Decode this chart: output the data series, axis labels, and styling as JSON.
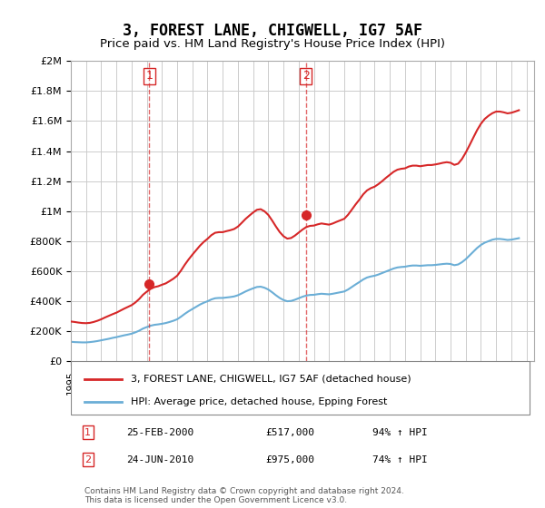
{
  "title": "3, FOREST LANE, CHIGWELL, IG7 5AF",
  "subtitle": "Price paid vs. HM Land Registry's House Price Index (HPI)",
  "ylabel": "",
  "xlabel": "",
  "ylim": [
    0,
    2000000
  ],
  "yticks": [
    0,
    200000,
    400000,
    600000,
    800000,
    1000000,
    1200000,
    1400000,
    1600000,
    1800000,
    2000000
  ],
  "ytick_labels": [
    "£0",
    "£200K",
    "£400K",
    "£600K",
    "£800K",
    "£1M",
    "£1.2M",
    "£1.4M",
    "£1.6M",
    "£1.8M",
    "£2M"
  ],
  "xlim_start": 1995.0,
  "xlim_end": 2025.5,
  "hpi_color": "#6baed6",
  "property_color": "#d62728",
  "sale1_x": 2000.15,
  "sale1_y": 517000,
  "sale2_x": 2010.48,
  "sale2_y": 975000,
  "sale1_label": "25-FEB-2000",
  "sale1_price": "£517,000",
  "sale1_hpi": "94% ↑ HPI",
  "sale2_label": "24-JUN-2010",
  "sale2_price": "£975,000",
  "sale2_hpi": "74% ↑ HPI",
  "legend_line1": "3, FOREST LANE, CHIGWELL, IG7 5AF (detached house)",
  "legend_line2": "HPI: Average price, detached house, Epping Forest",
  "footnote": "Contains HM Land Registry data © Crown copyright and database right 2024.\nThis data is licensed under the Open Government Licence v3.0.",
  "background_color": "#ffffff",
  "grid_color": "#cccccc",
  "hpi_data_x": [
    1995.0,
    1995.25,
    1995.5,
    1995.75,
    1996.0,
    1996.25,
    1996.5,
    1996.75,
    1997.0,
    1997.25,
    1997.5,
    1997.75,
    1998.0,
    1998.25,
    1998.5,
    1998.75,
    1999.0,
    1999.25,
    1999.5,
    1999.75,
    2000.0,
    2000.25,
    2000.5,
    2000.75,
    2001.0,
    2001.25,
    2001.5,
    2001.75,
    2002.0,
    2002.25,
    2002.5,
    2002.75,
    2003.0,
    2003.25,
    2003.5,
    2003.75,
    2004.0,
    2004.25,
    2004.5,
    2004.75,
    2005.0,
    2005.25,
    2005.5,
    2005.75,
    2006.0,
    2006.25,
    2006.5,
    2006.75,
    2007.0,
    2007.25,
    2007.5,
    2007.75,
    2008.0,
    2008.25,
    2008.5,
    2008.75,
    2009.0,
    2009.25,
    2009.5,
    2009.75,
    2010.0,
    2010.25,
    2010.5,
    2010.75,
    2011.0,
    2011.25,
    2011.5,
    2011.75,
    2012.0,
    2012.25,
    2012.5,
    2012.75,
    2013.0,
    2013.25,
    2013.5,
    2013.75,
    2014.0,
    2014.25,
    2014.5,
    2014.75,
    2015.0,
    2015.25,
    2015.5,
    2015.75,
    2016.0,
    2016.25,
    2016.5,
    2016.75,
    2017.0,
    2017.25,
    2017.5,
    2017.75,
    2018.0,
    2018.25,
    2018.5,
    2018.75,
    2019.0,
    2019.25,
    2019.5,
    2019.75,
    2020.0,
    2020.25,
    2020.5,
    2020.75,
    2021.0,
    2021.25,
    2021.5,
    2021.75,
    2022.0,
    2022.25,
    2022.5,
    2022.75,
    2023.0,
    2023.25,
    2023.5,
    2023.75,
    2024.0,
    2024.25,
    2024.5
  ],
  "hpi_data_y": [
    130000,
    128000,
    127000,
    126000,
    126000,
    128000,
    131000,
    135000,
    140000,
    145000,
    150000,
    156000,
    161000,
    167000,
    173000,
    178000,
    184000,
    193000,
    204000,
    218000,
    228000,
    237000,
    243000,
    246000,
    250000,
    255000,
    262000,
    270000,
    280000,
    297000,
    316000,
    333000,
    348000,
    363000,
    378000,
    390000,
    400000,
    412000,
    420000,
    422000,
    422000,
    425000,
    428000,
    432000,
    440000,
    452000,
    465000,
    476000,
    486000,
    495000,
    497000,
    490000,
    478000,
    460000,
    440000,
    422000,
    408000,
    400000,
    402000,
    410000,
    420000,
    430000,
    438000,
    442000,
    443000,
    447000,
    450000,
    448000,
    446000,
    450000,
    455000,
    460000,
    465000,
    478000,
    495000,
    512000,
    528000,
    545000,
    558000,
    565000,
    570000,
    578000,
    588000,
    598000,
    608000,
    618000,
    625000,
    628000,
    630000,
    635000,
    638000,
    638000,
    636000,
    638000,
    640000,
    640000,
    642000,
    645000,
    648000,
    650000,
    648000,
    640000,
    645000,
    660000,
    680000,
    705000,
    730000,
    755000,
    775000,
    790000,
    800000,
    810000,
    815000,
    815000,
    812000,
    808000,
    810000,
    815000,
    820000
  ],
  "property_data_x": [
    1995.0,
    1995.25,
    1995.5,
    1995.75,
    1996.0,
    1996.25,
    1996.5,
    1996.75,
    1997.0,
    1997.25,
    1997.5,
    1997.75,
    1998.0,
    1998.25,
    1998.5,
    1998.75,
    1999.0,
    1999.25,
    1999.5,
    1999.75,
    2000.0,
    2000.25,
    2000.5,
    2000.75,
    2001.0,
    2001.25,
    2001.5,
    2001.75,
    2002.0,
    2002.25,
    2002.5,
    2002.75,
    2003.0,
    2003.25,
    2003.5,
    2003.75,
    2004.0,
    2004.25,
    2004.5,
    2004.75,
    2005.0,
    2005.25,
    2005.5,
    2005.75,
    2006.0,
    2006.25,
    2006.5,
    2006.75,
    2007.0,
    2007.25,
    2007.5,
    2007.75,
    2008.0,
    2008.25,
    2008.5,
    2008.75,
    2009.0,
    2009.25,
    2009.5,
    2009.75,
    2010.0,
    2010.25,
    2010.5,
    2010.75,
    2011.0,
    2011.25,
    2011.5,
    2011.75,
    2012.0,
    2012.25,
    2012.5,
    2012.75,
    2013.0,
    2013.25,
    2013.5,
    2013.75,
    2014.0,
    2014.25,
    2014.5,
    2014.75,
    2015.0,
    2015.25,
    2015.5,
    2015.75,
    2016.0,
    2016.25,
    2016.5,
    2016.75,
    2017.0,
    2017.25,
    2017.5,
    2017.75,
    2018.0,
    2018.25,
    2018.5,
    2018.75,
    2019.0,
    2019.25,
    2019.5,
    2019.75,
    2020.0,
    2020.25,
    2020.5,
    2020.75,
    2021.0,
    2021.25,
    2021.5,
    2021.75,
    2022.0,
    2022.25,
    2022.5,
    2022.75,
    2023.0,
    2023.25,
    2023.5,
    2023.75,
    2024.0,
    2024.25,
    2024.5
  ],
  "property_data_y": [
    265000,
    262000,
    258000,
    255000,
    254000,
    256000,
    262000,
    270000,
    280000,
    292000,
    303000,
    314000,
    324000,
    337000,
    350000,
    362000,
    374000,
    392000,
    415000,
    443000,
    464000,
    482000,
    494000,
    500000,
    510000,
    519000,
    534000,
    550000,
    570000,
    604000,
    643000,
    678000,
    710000,
    740000,
    770000,
    795000,
    816000,
    840000,
    856000,
    860000,
    860000,
    867000,
    873000,
    881000,
    897000,
    922000,
    948000,
    970000,
    991000,
    1009000,
    1013000,
    999000,
    975000,
    938000,
    898000,
    861000,
    833000,
    817000,
    821000,
    837000,
    857000,
    877000,
    894000,
    902000,
    904000,
    912000,
    918000,
    914000,
    910000,
    918000,
    929000,
    939000,
    949000,
    976000,
    1010000,
    1045000,
    1077000,
    1112000,
    1138000,
    1153000,
    1163000,
    1180000,
    1200000,
    1222000,
    1242000,
    1262000,
    1276000,
    1282000,
    1285000,
    1297000,
    1303000,
    1303000,
    1299000,
    1303000,
    1307000,
    1307000,
    1311000,
    1316000,
    1322000,
    1326000,
    1322000,
    1308000,
    1316000,
    1347000,
    1390000,
    1439000,
    1490000,
    1540000,
    1582000,
    1614000,
    1635000,
    1652000,
    1663000,
    1663000,
    1658000,
    1651000,
    1655000,
    1663000,
    1672000
  ]
}
